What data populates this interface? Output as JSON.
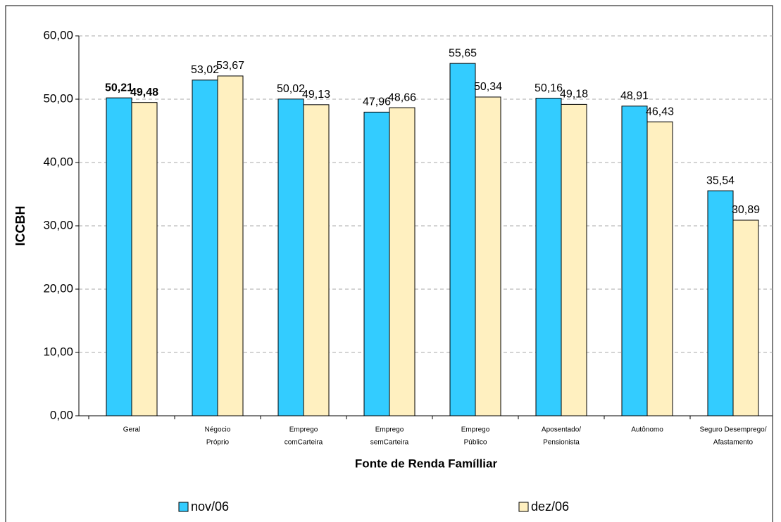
{
  "chart_data": {
    "type": "bar",
    "y_label": "ICCBH",
    "x_label": "Fonte de Renda Famílliar",
    "categories": [
      [
        "Geral"
      ],
      [
        "Négocio",
        "Próprio"
      ],
      [
        "Emprego",
        "comCarteira"
      ],
      [
        "Emprego",
        "semCarteira"
      ],
      [
        "Emprego",
        "Público"
      ],
      [
        "Aposentado/",
        "Pensionista"
      ],
      [
        "Autônomo"
      ],
      [
        "Seguro Desemprego/",
        "Afastamento"
      ]
    ],
    "series": [
      {
        "name": "nov/06",
        "color": "#33CCFF",
        "values": [
          50.21,
          53.02,
          50.02,
          47.96,
          55.65,
          50.16,
          48.91,
          35.54
        ],
        "value_labels": [
          "50,21",
          "53,02",
          "50,02",
          "47,96",
          "55,65",
          "50,16",
          "48,91",
          "35,54"
        ]
      },
      {
        "name": "dez/06",
        "color": "#FFF0C0",
        "values": [
          49.48,
          53.67,
          49.13,
          48.66,
          50.34,
          49.18,
          46.43,
          30.89
        ],
        "value_labels": [
          "49,48",
          "53,67",
          "49,13",
          "48,66",
          "50,34",
          "49,18",
          "46,43",
          "30,89"
        ]
      }
    ],
    "ylim": [
      0,
      60
    ],
    "yticks": [
      {
        "value": 0,
        "label": "0,00"
      },
      {
        "value": 10,
        "label": "10,00"
      },
      {
        "value": 20,
        "label": "20,00"
      },
      {
        "value": 30,
        "label": "30,00"
      },
      {
        "value": 40,
        "label": "40,00"
      },
      {
        "value": 50,
        "label": "50,00"
      },
      {
        "value": 60,
        "label": "60,00"
      }
    ],
    "grid": true
  }
}
